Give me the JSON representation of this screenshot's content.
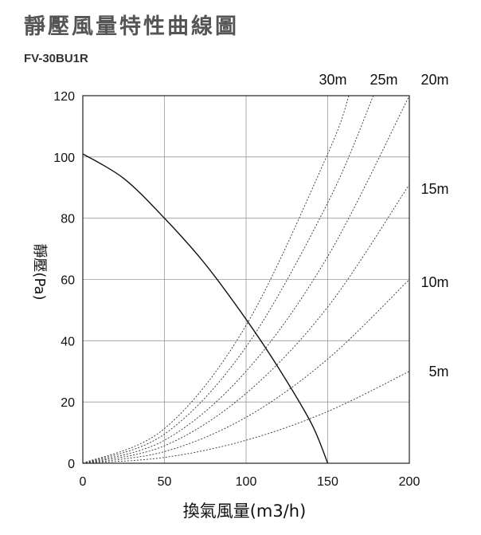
{
  "chart_data": {
    "type": "line",
    "title": "靜壓風量特性曲線圖",
    "subtitle": "FV-30BU1R",
    "xlabel": "換氣風量(m3/h)",
    "ylabel": "靜壓(Pa)",
    "xlim": [
      0,
      200
    ],
    "ylim": [
      0,
      120
    ],
    "x_ticks": [
      "0",
      "50",
      "100",
      "150",
      "200"
    ],
    "y_ticks": [
      "0",
      "20",
      "40",
      "60",
      "80",
      "100",
      "120"
    ],
    "grid": true,
    "fan_curve": {
      "x": [
        0,
        25,
        50,
        75,
        100,
        120,
        140,
        150
      ],
      "y": [
        101,
        93,
        80,
        65,
        47,
        31,
        13,
        0
      ]
    },
    "duct_curves": [
      {
        "name": "5m",
        "x": [
          0,
          50,
          100,
          150,
          200
        ],
        "y": [
          0,
          1.9,
          7.5,
          16.9,
          30
        ]
      },
      {
        "name": "10m",
        "x": [
          0,
          50,
          100,
          150,
          200
        ],
        "y": [
          0,
          3.8,
          15,
          34,
          60
        ]
      },
      {
        "name": "15m",
        "x": [
          0,
          50,
          100,
          150,
          200
        ],
        "y": [
          0,
          5.7,
          22.8,
          51,
          91
        ]
      },
      {
        "name": "20m",
        "x": [
          0,
          50,
          100,
          150,
          200
        ],
        "y": [
          0,
          7.5,
          30,
          67.5,
          120
        ]
      },
      {
        "name": "25m",
        "x": [
          0,
          50,
          100,
          150,
          178
        ],
        "y": [
          0,
          9.5,
          38,
          85,
          120
        ]
      },
      {
        "name": "30m",
        "x": [
          0,
          50,
          100,
          150,
          163
        ],
        "y": [
          0,
          11.3,
          45,
          101,
          120
        ]
      }
    ],
    "curve_labels": [
      "30m",
      "25m",
      "20m",
      "15m",
      "10m",
      "5m"
    ]
  }
}
